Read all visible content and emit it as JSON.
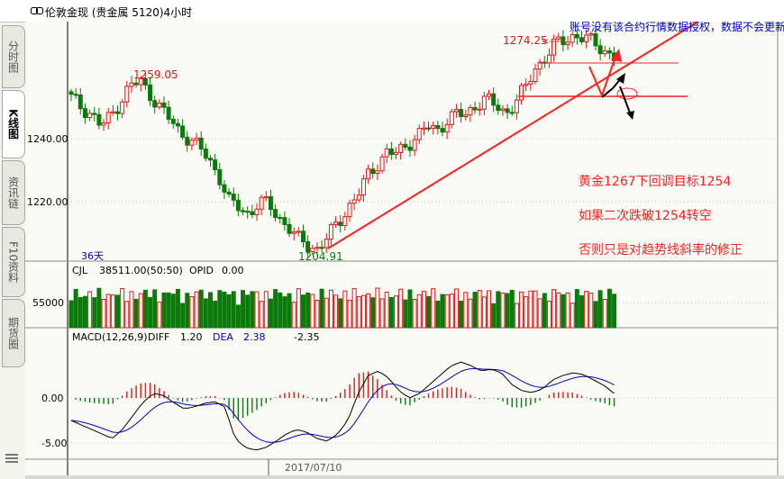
{
  "window": {
    "title": "伦敦金现 (贵金属 5120)4小时",
    "title_icon": "link-chain-icon"
  },
  "sidebar": {
    "tabs": [
      {
        "label": "分时图",
        "active": false
      },
      {
        "label": "K线图",
        "active": true
      },
      {
        "label": "资讯链",
        "active": false
      },
      {
        "label": "F10资料",
        "active": false
      },
      {
        "label": "期货圈",
        "active": false
      }
    ],
    "menu_icon": "hamburger-menu-icon"
  },
  "chart": {
    "warning_text": "账号没有该合约行情数据授权，数据不会更新",
    "period_label": "36天",
    "date_label": "2017/07/10",
    "colors": {
      "up": "#e01818",
      "down": "#0b7a0b",
      "trendline": "#ff2020",
      "annotation": "#ff2020",
      "warning": "#0000cc",
      "diff_line": "#000000",
      "dea_line": "#0000cc"
    },
    "annotations": [
      "黄金1267下回调目标1254",
      "如果二次跌破1254转空",
      "否则只是对趋势线斜率的修正"
    ],
    "volume_info": {
      "name": "CJL",
      "value": "38511.00(50:50)",
      "opid_label": "OPID",
      "opid_value": "0.00"
    },
    "macd_info": {
      "name": "MACD(12,26,9)",
      "diff_label": "DIFF",
      "diff_value": "1.20",
      "dea_label": "DEA",
      "dea_value": "2.38",
      "macd_value": "-2.35"
    }
  },
  "chart_data": [
    {
      "type": "candlestick",
      "title": "伦敦金现 4小时",
      "y_ticks": [
        "1240.00",
        "1220.00"
      ],
      "y_range": [
        1197,
        1281
      ],
      "price_labels": [
        {
          "text": "1259.05",
          "value": 1259.05,
          "kind": "high"
        },
        {
          "text": "1274.25",
          "value": 1274.25,
          "kind": "high"
        },
        {
          "text": "1204.91",
          "value": 1204.91,
          "kind": "low"
        }
      ],
      "x_label": "2017/07/10",
      "trendline": {
        "from": [
          0.29,
          1204
        ],
        "to": [
          0.78,
          1285
        ]
      },
      "levels": [
        {
          "value": 1267,
          "label": "1267"
        },
        {
          "value": 1254,
          "label": "1254"
        }
      ],
      "path_close": [
        1253,
        1250,
        1248,
        1244,
        1247,
        1252,
        1257,
        1258,
        1254,
        1250,
        1246,
        1242,
        1240,
        1237,
        1233,
        1228,
        1220,
        1218,
        1216,
        1220,
        1219,
        1215,
        1212,
        1208,
        1206,
        1205,
        1209,
        1213,
        1218,
        1222,
        1228,
        1232,
        1236,
        1235,
        1238,
        1241,
        1244,
        1242,
        1246,
        1248,
        1247,
        1251,
        1253,
        1250,
        1248,
        1252,
        1256,
        1262,
        1266,
        1270,
        1271,
        1273,
        1272,
        1270,
        1268,
        1266
      ]
    },
    {
      "type": "bar",
      "name": "CJL",
      "y_ticks": [
        "55000"
      ],
      "last_value": 38511.0
    },
    {
      "type": "line",
      "name": "MACD(12,26,9)",
      "y_ticks": [
        "0.00",
        "-5.00"
      ],
      "y_range": [
        -6.5,
        4.0
      ],
      "series": [
        {
          "name": "DIFF",
          "last": 1.2
        },
        {
          "name": "DEA",
          "last": 2.38
        },
        {
          "name": "MACD",
          "last": -2.35
        }
      ],
      "diff_path": [
        -2.5,
        -3.0,
        -3.5,
        -4.0,
        -4.5,
        -3.5,
        -2.0,
        -0.5,
        0.5,
        0.3,
        -0.5,
        -1.2,
        -1.0,
        -0.6,
        -0.4,
        -1.0,
        -4.5,
        -5.5,
        -5.8,
        -5.5,
        -4.8,
        -4.0,
        -3.5,
        -3.8,
        -4.5,
        -4.8,
        -4.0,
        -2.5,
        0.5,
        2.5,
        3.0,
        2.2,
        0.8,
        0.0,
        0.5,
        1.5,
        2.5,
        3.5,
        4.0,
        3.6,
        3.0,
        3.2,
        2.8,
        1.5,
        0.8,
        0.6,
        1.0,
        2.0,
        2.5,
        2.8,
        2.6,
        2.0,
        1.4,
        0.5
      ]
    }
  ]
}
